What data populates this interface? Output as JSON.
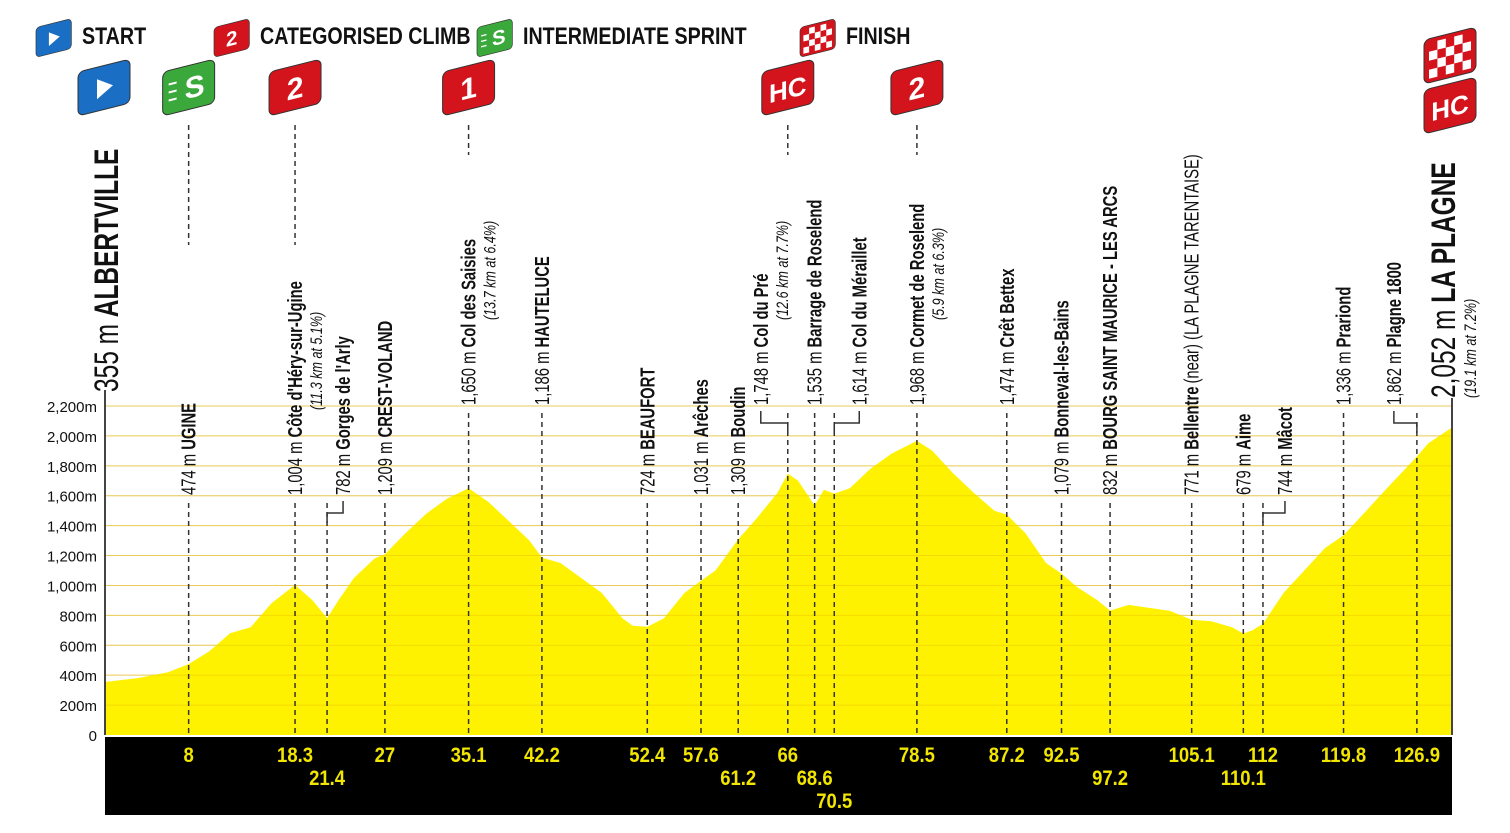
{
  "legend": [
    {
      "icon": "start-flag-icon",
      "label": "START",
      "color": "#1a6fc4"
    },
    {
      "icon": "categorised-climb-icon",
      "label": "CATEGORISED CLIMB",
      "color": "#d4141c",
      "glyph": "2"
    },
    {
      "icon": "intermediate-sprint-icon",
      "label": "INTERMEDIATE SPRINT",
      "color": "#3aa83a",
      "glyph": "S"
    },
    {
      "icon": "finish-flag-icon",
      "label": "FINISH",
      "color": "#d4141c"
    }
  ],
  "colors": {
    "profile": "#fff200",
    "grid": "#e0b000",
    "base": "#000000",
    "km_text": "#f2e600",
    "climb": "#d4141c",
    "start": "#1a6fc4",
    "sprint": "#3aa83a"
  },
  "chart_data": {
    "type": "area",
    "xlabel": "",
    "ylabel": "",
    "xlim": [
      0,
      130.2
    ],
    "ylim": [
      0,
      2200
    ],
    "y_ticks": [
      "0",
      "200m",
      "400m",
      "600m",
      "800m",
      "1,000m",
      "1,200m",
      "1,400m",
      "1,600m",
      "1,800m",
      "2,000m",
      "2,200m"
    ],
    "y_tick_values": [
      0,
      200,
      400,
      600,
      800,
      1000,
      1200,
      1400,
      1600,
      1800,
      2000,
      2200
    ],
    "grid": true,
    "profile": [
      [
        0,
        355
      ],
      [
        3,
        380
      ],
      [
        6,
        420
      ],
      [
        8,
        474
      ],
      [
        10,
        560
      ],
      [
        12,
        680
      ],
      [
        14,
        720
      ],
      [
        16,
        880
      ],
      [
        18.3,
        1004
      ],
      [
        20,
        900
      ],
      [
        21.4,
        782
      ],
      [
        22.5,
        900
      ],
      [
        24,
        1050
      ],
      [
        26,
        1180
      ],
      [
        27,
        1209
      ],
      [
        29,
        1350
      ],
      [
        31,
        1480
      ],
      [
        33,
        1580
      ],
      [
        35.1,
        1650
      ],
      [
        37,
        1560
      ],
      [
        39,
        1430
      ],
      [
        41,
        1300
      ],
      [
        42.2,
        1186
      ],
      [
        44,
        1150
      ],
      [
        46,
        1050
      ],
      [
        48,
        950
      ],
      [
        50,
        780
      ],
      [
        51,
        730
      ],
      [
        52.4,
        724
      ],
      [
        54,
        780
      ],
      [
        56,
        950
      ],
      [
        57.6,
        1031
      ],
      [
        59,
        1100
      ],
      [
        61.2,
        1309
      ],
      [
        63,
        1450
      ],
      [
        65,
        1620
      ],
      [
        66,
        1748
      ],
      [
        67,
        1700
      ],
      [
        68.6,
        1535
      ],
      [
        69.5,
        1640
      ],
      [
        70.5,
        1614
      ],
      [
        72,
        1650
      ],
      [
        74,
        1780
      ],
      [
        76,
        1880
      ],
      [
        78.5,
        1968
      ],
      [
        80,
        1900
      ],
      [
        82,
        1750
      ],
      [
        84,
        1620
      ],
      [
        86,
        1500
      ],
      [
        87.2,
        1474
      ],
      [
        89,
        1350
      ],
      [
        91,
        1150
      ],
      [
        92.5,
        1079
      ],
      [
        94,
        990
      ],
      [
        96,
        900
      ],
      [
        97.2,
        832
      ],
      [
        99,
        870
      ],
      [
        101,
        850
      ],
      [
        103,
        830
      ],
      [
        105.1,
        771
      ],
      [
        107,
        760
      ],
      [
        109,
        720
      ],
      [
        110.1,
        679
      ],
      [
        111,
        700
      ],
      [
        112,
        744
      ],
      [
        114,
        950
      ],
      [
        116,
        1100
      ],
      [
        118,
        1250
      ],
      [
        119.8,
        1336
      ],
      [
        122,
        1500
      ],
      [
        124,
        1650
      ],
      [
        126.9,
        1862
      ],
      [
        128,
        1950
      ],
      [
        130.2,
        2052
      ]
    ],
    "km_ticks": [
      "8",
      "18.3",
      "21.4",
      "27",
      "35.1",
      "42.2",
      "52.4",
      "57.6",
      "61.2",
      "66",
      "68.6",
      "70.5",
      "78.5",
      "87.2",
      "92.5",
      "97.2",
      "105.1",
      "110.1",
      "112",
      "119.8",
      "126.9"
    ],
    "start": {
      "km": 0,
      "alt": "355 m",
      "name": "ALBERTVILLE"
    },
    "finish": {
      "km": 130.2,
      "alt": "2,052 m",
      "name": "LA PLAGNE",
      "note": "(19.1 km at 7.2%)"
    },
    "markers": [
      {
        "km": 8,
        "alt": "474 m",
        "name": "UGINE",
        "icon": "sprint"
      },
      {
        "km": 18.3,
        "alt": "1,004 m",
        "name": "Côte d'Héry-sur-Ugine",
        "note": "(11.3 km at 5.1%)",
        "icon": "cat-2"
      },
      {
        "km": 21.4,
        "alt": "782 m",
        "name": "Gorges de l'Arly"
      },
      {
        "km": 27,
        "alt": "1,209 m",
        "name": "CREST-VOLAND"
      },
      {
        "km": 35.1,
        "alt": "1,650 m",
        "name": "Col des Saisies",
        "note": "(13.7 km at 6.4%)",
        "icon": "cat-1"
      },
      {
        "km": 42.2,
        "alt": "1,186 m",
        "name": "HAUTELUCE"
      },
      {
        "km": 52.4,
        "alt": "724 m",
        "name": "BEAUFORT"
      },
      {
        "km": 57.6,
        "alt": "1,031 m",
        "name": "Arêches"
      },
      {
        "km": 61.2,
        "alt": "1,309 m",
        "name": "Boudin"
      },
      {
        "km": 66,
        "alt": "1,748 m",
        "name": "Col du Pré",
        "note": "(12.6 km at 7.7%)",
        "icon": "cat-hc"
      },
      {
        "km": 68.6,
        "alt": "1,535 m",
        "name": "Barrage de Roselend"
      },
      {
        "km": 70.5,
        "alt": "1,614 m",
        "name": "Col du Méraillet"
      },
      {
        "km": 78.5,
        "alt": "1,968 m",
        "name": "Cormet de Roselend",
        "note": "(5.9 km at 6.3%)",
        "icon": "cat-2"
      },
      {
        "km": 87.2,
        "alt": "1,474 m",
        "name": "Crêt Bettex"
      },
      {
        "km": 92.5,
        "alt": "1,079 m",
        "name": "Bonneval-les-Bains"
      },
      {
        "km": 97.2,
        "alt": "832 m",
        "name": "BOURG SAINT MAURICE - LES ARCS"
      },
      {
        "km": 105.1,
        "alt": "771 m",
        "name": "Bellentre",
        "suffix": "(near) (LA PLAGNE TARENTAISE)"
      },
      {
        "km": 110.1,
        "alt": "679 m",
        "name": "Aime"
      },
      {
        "km": 112,
        "alt": "744 m",
        "name": "Mâcot"
      },
      {
        "km": 119.8,
        "alt": "1,336 m",
        "name": "Prariond"
      },
      {
        "km": 126.9,
        "alt": "1,862 m",
        "name": "Plagne 1800"
      }
    ],
    "climb_badges": {
      "cat-1": "1",
      "cat-2": "2",
      "cat-hc": "HC",
      "sprint": "S"
    }
  }
}
